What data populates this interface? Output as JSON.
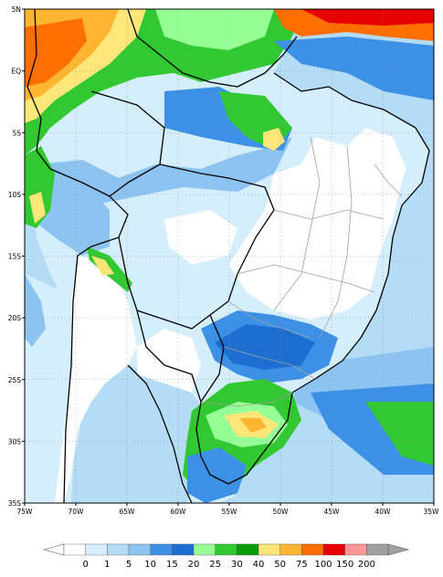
{
  "map": {
    "lat_labels": [
      "5N",
      "EQ",
      "5S",
      "10S",
      "15S",
      "20S",
      "25S",
      "30S",
      "35S"
    ],
    "lon_labels": [
      "75W",
      "70W",
      "65W",
      "60W",
      "55W",
      "50W",
      "45W",
      "40W",
      "35W"
    ],
    "extent": {
      "lon_min": -75,
      "lon_max": -35,
      "lat_min": -35,
      "lat_max": 5
    },
    "grid": "dotted",
    "ocean_color": "#b4dcf5",
    "land_dry_color": "#ffffff",
    "boundary_color": "#000000",
    "state_boundary_color": "#a0a0a0"
  },
  "legend": {
    "labels": [
      "0",
      "1",
      "5",
      "10",
      "15",
      "20",
      "25",
      "30",
      "40",
      "50",
      "75",
      "100",
      "150",
      "200"
    ],
    "colors": [
      "#ffffff",
      "#d4eefc",
      "#b4dcf5",
      "#8cc3f0",
      "#3c91e6",
      "#1e6ed2",
      "#96ff96",
      "#32c832",
      "#0a9a0a",
      "#ffe678",
      "#ffb432",
      "#ff6e00",
      "#e60000",
      "#ff9696",
      "#a0a0a0"
    ],
    "underflow_color": "#ffffff",
    "overflow_color": "#a0a0a0"
  }
}
